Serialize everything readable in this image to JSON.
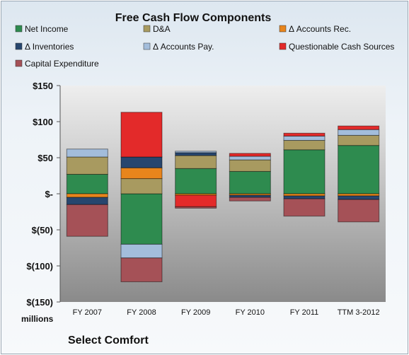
{
  "chart_data": {
    "type": "bar",
    "stacked": true,
    "title": "Free Cash Flow Components",
    "unit_label": "millions",
    "company": "Select Comfort",
    "categories": [
      "FY 2007",
      "FY 2008",
      "FY 2009",
      "FY 2010",
      "FY 2011",
      "TTM 3-2012"
    ],
    "ylim": [
      -150,
      150
    ],
    "yticks": [
      150,
      100,
      50,
      0,
      -50,
      -100,
      -150
    ],
    "ytick_labels": [
      "$150",
      "$100",
      "$50",
      "$-",
      "$(50)",
      "$(100)",
      "$(150)"
    ],
    "legend_position": "top",
    "grid": false,
    "series": [
      {
        "name": "Net Income",
        "color": "#2e8b4f",
        "values": [
          27,
          -70,
          35,
          31,
          61,
          67
        ]
      },
      {
        "name": "D&A",
        "color": "#a89a60",
        "values": [
          24,
          21,
          18,
          16,
          13,
          14
        ]
      },
      {
        "name": "Δ Accounts Rec.",
        "color": "#e8851c",
        "values": [
          -5,
          15,
          -2,
          -2,
          -3,
          -3
        ]
      },
      {
        "name": "Δ Inventories",
        "color": "#27466e",
        "values": [
          -10,
          15,
          4,
          -3,
          -4,
          -5
        ]
      },
      {
        "name": "Δ Accounts Pay.",
        "color": "#a3bddb",
        "values": [
          11,
          -19,
          2,
          5,
          6,
          8
        ]
      },
      {
        "name": "Questionable Cash Sources",
        "color": "#e32a2a",
        "values": [
          0,
          62,
          -16,
          4,
          4,
          5
        ]
      },
      {
        "name": "Capital Expenditure",
        "color": "#a55157",
        "values": [
          -44,
          -33,
          -2,
          -5,
          -24,
          -31
        ]
      }
    ]
  }
}
